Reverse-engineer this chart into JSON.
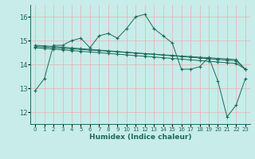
{
  "background_color": "#c8ecea",
  "grid_color_v": "#e8b0b0",
  "grid_color_h": "#e8b0b0",
  "line_color": "#1a6b5a",
  "xlabel": "Humidex (Indice chaleur)",
  "ylim": [
    11.5,
    16.5
  ],
  "xlim": [
    -0.5,
    23.5
  ],
  "yticks": [
    12,
    13,
    14,
    15,
    16
  ],
  "xticks": [
    0,
    1,
    2,
    3,
    4,
    5,
    6,
    7,
    8,
    9,
    10,
    11,
    12,
    13,
    14,
    15,
    16,
    17,
    18,
    19,
    20,
    21,
    22,
    23
  ],
  "series": [
    [
      12.9,
      13.4,
      14.8,
      14.8,
      15.0,
      15.1,
      14.7,
      15.2,
      15.3,
      15.1,
      15.5,
      16.0,
      16.1,
      15.5,
      15.2,
      14.9,
      13.8,
      13.8,
      13.9,
      14.3,
      13.3,
      11.8,
      12.3,
      13.4
    ],
    [
      14.75,
      14.73,
      14.7,
      14.68,
      14.65,
      14.63,
      14.6,
      14.58,
      14.55,
      14.53,
      14.5,
      14.48,
      14.45,
      14.43,
      14.4,
      14.38,
      14.35,
      14.33,
      14.3,
      14.28,
      14.25,
      14.23,
      14.2,
      13.8
    ],
    [
      14.8,
      14.78,
      14.75,
      14.72,
      14.69,
      14.66,
      14.63,
      14.6,
      14.57,
      14.54,
      14.51,
      14.48,
      14.45,
      14.42,
      14.39,
      14.36,
      14.33,
      14.3,
      14.27,
      14.24,
      14.21,
      14.18,
      14.15,
      13.8
    ],
    [
      14.7,
      14.67,
      14.64,
      14.61,
      14.58,
      14.55,
      14.52,
      14.49,
      14.46,
      14.43,
      14.4,
      14.37,
      14.34,
      14.31,
      14.28,
      14.25,
      14.22,
      14.19,
      14.16,
      14.13,
      14.1,
      14.07,
      14.04,
      13.8
    ]
  ]
}
